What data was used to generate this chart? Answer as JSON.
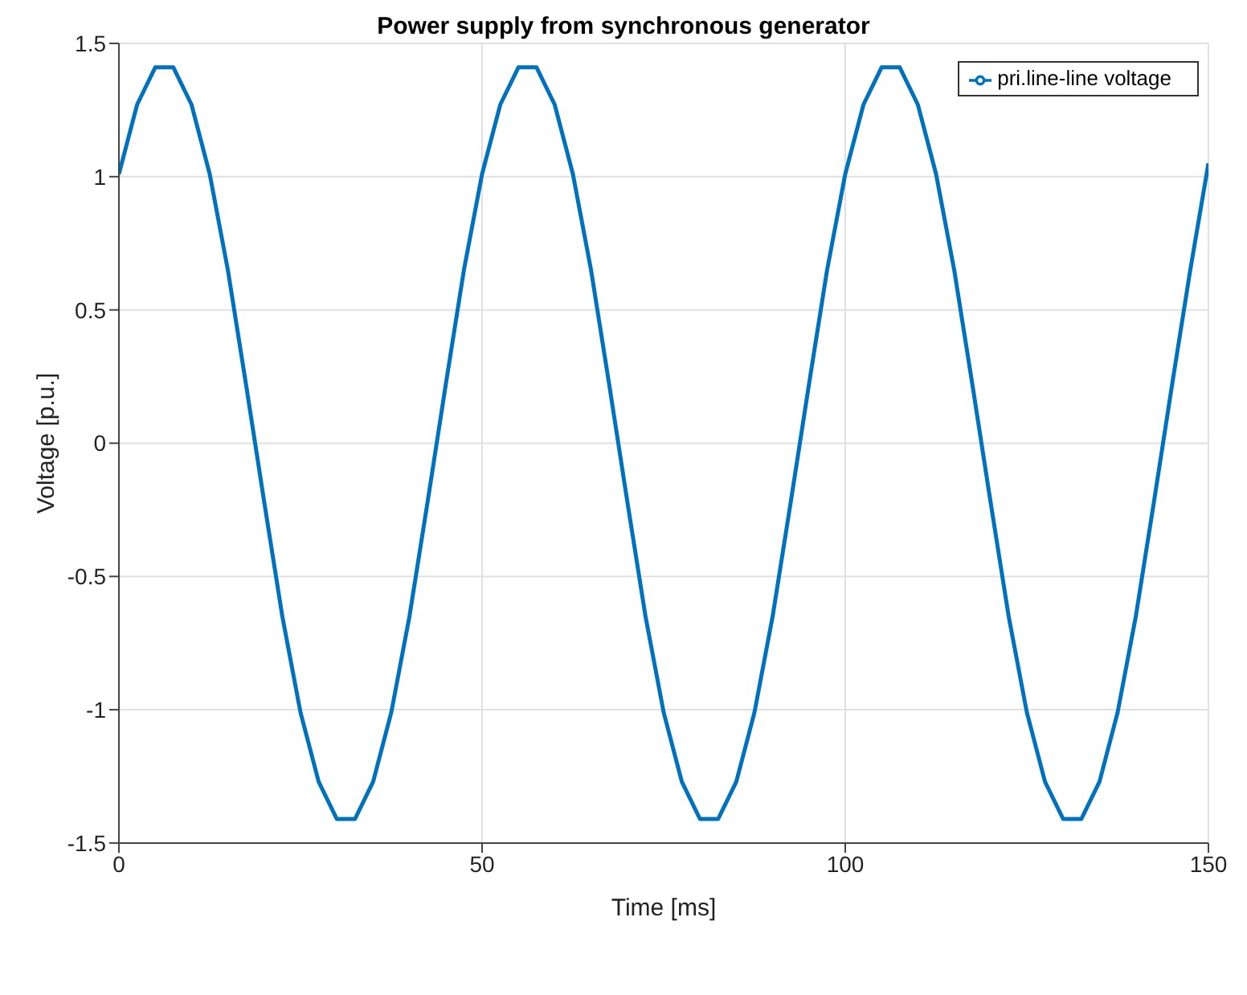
{
  "chart_data": {
    "type": "line",
    "title": "Power supply from synchronous generator",
    "xlabel": "Time [ms]",
    "ylabel": "Voltage [p.u.]",
    "x": [
      0,
      2.5,
      5,
      7.5,
      10,
      12.5,
      15,
      17.5,
      20,
      22.5,
      25,
      27.5,
      30,
      32.5,
      35,
      37.5,
      40,
      42.5,
      45,
      47.5,
      50,
      52.5,
      55,
      57.5,
      60,
      62.5,
      65,
      67.5,
      70,
      72.5,
      75,
      77.5,
      80,
      82.5,
      85,
      87.5,
      90,
      92.5,
      95,
      97.5,
      100,
      102.5,
      105,
      107.5,
      110,
      112.5,
      115,
      117.5,
      120,
      122.5,
      125,
      127.5,
      130,
      132.5,
      135,
      137.5,
      140,
      142.5,
      145,
      147.5,
      150
    ],
    "series": [
      {
        "name": "pri.line-line voltage",
        "color": "#0072bd",
        "values": [
          1.01,
          1.27,
          1.41,
          1.41,
          1.27,
          1.01,
          0.65,
          0.22,
          -0.22,
          -0.65,
          -1.01,
          -1.27,
          -1.41,
          -1.41,
          -1.27,
          -1.01,
          -0.65,
          -0.22,
          0.22,
          0.65,
          1.01,
          1.27,
          1.41,
          1.41,
          1.27,
          1.01,
          0.65,
          0.22,
          -0.22,
          -0.65,
          -1.01,
          -1.27,
          -1.41,
          -1.41,
          -1.27,
          -1.01,
          -0.65,
          -0.22,
          0.22,
          0.65,
          1.01,
          1.27,
          1.41,
          1.41,
          1.27,
          1.01,
          0.65,
          0.22,
          -0.22,
          -0.65,
          -1.01,
          -1.27,
          -1.41,
          -1.41,
          -1.27,
          -1.01,
          -0.65,
          -0.22,
          0.22,
          0.65,
          1.05
        ]
      }
    ],
    "xlim": [
      0,
      150
    ],
    "xticks": [
      0,
      50,
      100,
      150
    ],
    "ylim": [
      -1.5,
      1.5
    ],
    "yticks": [
      -1.5,
      -1,
      -0.5,
      0,
      0.5,
      1,
      1.5
    ],
    "grid": true,
    "legend": "top right",
    "marker": "none",
    "line_style": "solid"
  }
}
